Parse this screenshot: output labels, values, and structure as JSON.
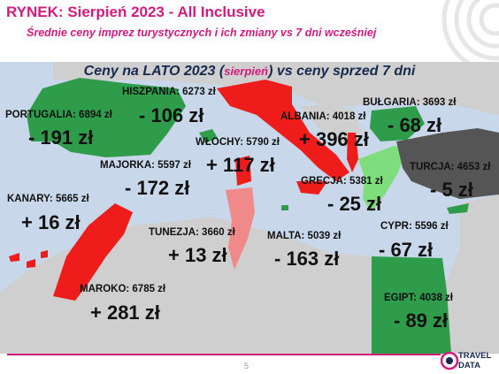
{
  "header": {
    "title": "RYNEK: Sierpień 2023 - All Inclusive",
    "subtitle": "Średnie ceny imprez turystycznych i ich zmiany vs 7 dni wcześniej"
  },
  "map": {
    "heading_main": "Ceny na LATO 2023 (",
    "heading_note": "sierpień",
    "heading_tail": ") vs ceny sprzed 7 dni",
    "regions": [
      {
        "label": "PORTUGALIA: 6894 zł",
        "change": "- 191 zł",
        "trend": "down",
        "color": "#2e9c4a"
      },
      {
        "label": "HISZPANIA: 6273 zł",
        "change": "- 106 zł",
        "trend": "down",
        "color": "#2e9c4a"
      },
      {
        "label": "WŁOCHY: 5790 zł",
        "change": "+ 117 zł",
        "trend": "up",
        "color": "#ef1c1c"
      },
      {
        "label": "ALBANIA: 4018 zł",
        "change": "+ 396 zł",
        "trend": "up",
        "color": "#ef1c1c"
      },
      {
        "label": "BUŁGARIA: 3693 zł",
        "change": "- 68 zł",
        "trend": "down",
        "color": "#2e9c4a"
      },
      {
        "label": "MAJORKA: 5597 zł",
        "change": "- 172 zł",
        "trend": "down",
        "color": "#2e9c4a"
      },
      {
        "label": "TURCJA: 4653 zł",
        "change": "- 5 zł",
        "trend": "down",
        "color": "#555555"
      },
      {
        "label": "GRECJA: 5381 zł",
        "change": "- 25 zł",
        "trend": "down",
        "color": "#7ede7e"
      },
      {
        "label": "KANARY: 5665 zł",
        "change": "+ 16 zł",
        "trend": "up",
        "color": "#ef1c1c"
      },
      {
        "label": "TUNEZJA: 3660 zł",
        "change": "+ 13 zł",
        "trend": "up",
        "color": "#f08a8a"
      },
      {
        "label": "MALTA: 5039 zł",
        "change": "- 163 zł",
        "trend": "down",
        "color": "#2e9c4a"
      },
      {
        "label": "CYPR: 5596 zł",
        "change": "- 67 zł",
        "trend": "down",
        "color": "#2e9c4a"
      },
      {
        "label": "MAROKO: 6785 zł",
        "change": "+ 281 zł",
        "trend": "up",
        "color": "#ef1c1c"
      },
      {
        "label": "EGIPT: 4038 zł",
        "change": "- 89 zł",
        "trend": "down",
        "color": "#2e9c4a"
      }
    ]
  },
  "colors": {
    "brand": "#d21b7d",
    "sea": "#c8d8ea",
    "land": "#cfcfcf",
    "increase": "#ef1c1c",
    "decrease": "#2e9c4a"
  },
  "footer": {
    "page_number": "5",
    "logo_top": "TRAVEL",
    "logo_bottom": "DATA"
  }
}
